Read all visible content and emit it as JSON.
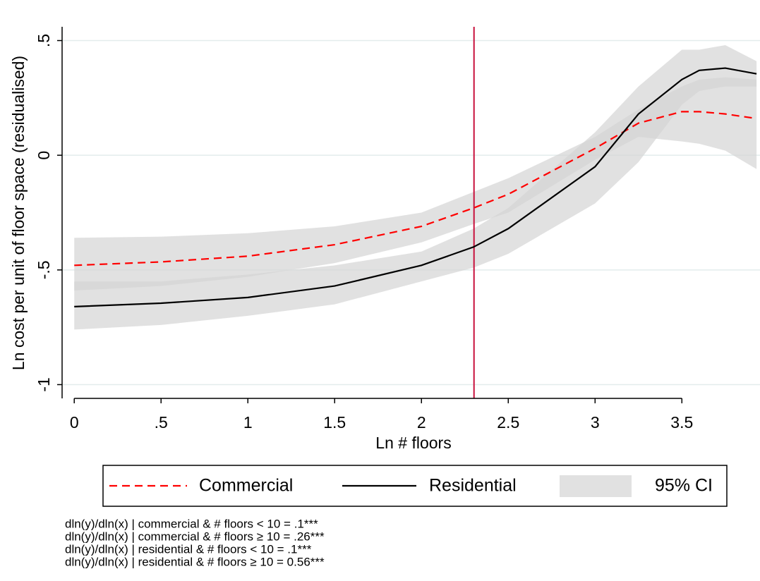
{
  "chart_data": {
    "type": "line",
    "x_label": "Ln # floors",
    "y_label": "Ln cost per unit of floor space (residualised)",
    "x": [
      0,
      0.5,
      1,
      1.5,
      2,
      2.3,
      2.5,
      3,
      3.25,
      3.5,
      3.6,
      3.75,
      3.93
    ],
    "series": [
      {
        "name": "Commercial",
        "color": "#ff0000",
        "dashed": true,
        "values": [
          -0.48,
          -0.465,
          -0.44,
          -0.39,
          -0.31,
          -0.23,
          -0.17,
          0.03,
          0.14,
          0.19,
          0.19,
          0.18,
          0.16
        ],
        "ci_upper": [
          -0.36,
          -0.355,
          -0.34,
          -0.31,
          -0.25,
          -0.16,
          -0.1,
          0.08,
          0.2,
          0.3,
          0.33,
          0.34,
          0.33
        ],
        "ci_lower": [
          -0.59,
          -0.57,
          -0.53,
          -0.47,
          -0.38,
          -0.3,
          -0.25,
          -0.02,
          0.08,
          0.06,
          0.05,
          0.02,
          -0.06
        ]
      },
      {
        "name": "Residential",
        "color": "#000000",
        "dashed": false,
        "values": [
          -0.66,
          -0.645,
          -0.62,
          -0.57,
          -0.48,
          -0.4,
          -0.32,
          -0.05,
          0.18,
          0.33,
          0.37,
          0.38,
          0.355
        ],
        "ci_upper": [
          -0.55,
          -0.55,
          -0.52,
          -0.48,
          -0.42,
          -0.32,
          -0.23,
          0.1,
          0.3,
          0.46,
          0.46,
          0.48,
          0.41
        ],
        "ci_lower": [
          -0.76,
          -0.74,
          -0.7,
          -0.65,
          -0.55,
          -0.49,
          -0.43,
          -0.21,
          -0.03,
          0.22,
          0.28,
          0.3,
          0.3
        ]
      }
    ],
    "ci_label": "95% CI",
    "ci_color": "#d4d4d4",
    "vline": 2.3026,
    "vline_color": "#c8103c",
    "xlim": [
      -0.07,
      3.95
    ],
    "ylim": [
      -1.06,
      0.56
    ],
    "xticks": [
      0,
      {
        "value": 0.5,
        "label": ".5"
      },
      1,
      1.5,
      2,
      2.5,
      3,
      3.5
    ],
    "yticks": [
      {
        "value": 0.5,
        "label": ".5"
      },
      0,
      {
        "value": -0.5,
        "label": "-.5"
      },
      -1
    ],
    "grid": true,
    "notes": [
      "dln(y)/dln(x) | commercial & # floors < 10 = .1***",
      "dln(y)/dln(x) | commercial & # floors ≥ 10 = .26***",
      "dln(y)/dln(x) | residential & # floors < 10 = .1***",
      "dln(y)/dln(x) | residential & # floors ≥ 10 = 0.56***"
    ]
  }
}
